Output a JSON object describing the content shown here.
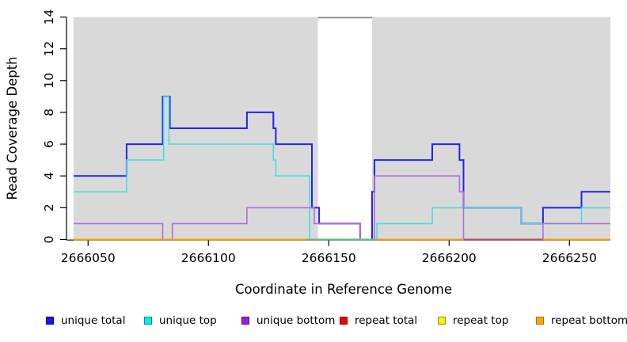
{
  "chart_data": {
    "type": "line",
    "subtype": "step-coverage",
    "title": "",
    "xlabel": "Coordinate in Reference Genome",
    "ylabel": "Read Coverage Depth",
    "xlim": [
      2666044,
      2666267
    ],
    "ylim": [
      0,
      14
    ],
    "x_ticks": [
      2666050,
      2666100,
      2666150,
      2666200,
      2666250
    ],
    "y_ticks": [
      0,
      2,
      4,
      6,
      8,
      10,
      12,
      14
    ],
    "grid": false,
    "plot_background": "#d9d9d9",
    "axis_color": "#000000",
    "masked_region": {
      "start": 2666145.5,
      "end": 2666168,
      "fill": "#ffffff",
      "top_line_color": "#7a7a7a"
    },
    "series": [
      {
        "name": "repeat total",
        "color": "#e00000",
        "width": 1.6,
        "steps": [
          [
            2666044,
            0
          ]
        ]
      },
      {
        "name": "repeat top",
        "color": "#f5f500",
        "width": 1.6,
        "steps": [
          [
            2666044,
            0
          ]
        ]
      },
      {
        "name": "unique total",
        "color": "#2323ee",
        "width": 2,
        "steps": [
          [
            2666044,
            4
          ],
          [
            2666066,
            6
          ],
          [
            2666081,
            9
          ],
          [
            2666084,
            7
          ],
          [
            2666116,
            8
          ],
          [
            2666127,
            7
          ],
          [
            2666128,
            6
          ],
          [
            2666143,
            2
          ],
          [
            2666146,
            1
          ],
          [
            2666163,
            0
          ],
          [
            2666168,
            3
          ],
          [
            2666169,
            5
          ],
          [
            2666193,
            6
          ],
          [
            2666204.3,
            5
          ],
          [
            2666206,
            2
          ],
          [
            2666230,
            1
          ],
          [
            2666239,
            2
          ],
          [
            2666255,
            3
          ]
        ]
      },
      {
        "name": "unique top",
        "color": "#45dede",
        "width": 1.6,
        "steps": [
          [
            2666044,
            3
          ],
          [
            2666066,
            5
          ],
          [
            2666081.4,
            9
          ],
          [
            2666083.6,
            6
          ],
          [
            2666127,
            5
          ],
          [
            2666128,
            4
          ],
          [
            2666142,
            0
          ],
          [
            2666170,
            1
          ],
          [
            2666193,
            2
          ],
          [
            2666230,
            1
          ],
          [
            2666255,
            2
          ]
        ]
      },
      {
        "name": "unique bottom",
        "color": "#ad6fdd",
        "width": 1.6,
        "steps": [
          [
            2666044,
            1
          ],
          [
            2666081,
            0
          ],
          [
            2666085,
            1
          ],
          [
            2666116,
            2
          ],
          [
            2666144,
            1
          ],
          [
            2666163,
            0
          ],
          [
            2666169,
            4
          ],
          [
            2666204.3,
            3
          ],
          [
            2666206,
            0
          ],
          [
            2666239,
            1
          ]
        ]
      },
      {
        "name": "repeat bottom",
        "color": "#ff9d00",
        "width": 2,
        "steps": [
          [
            2666044,
            0
          ]
        ]
      }
    ],
    "zero_line_overlays": [
      {
        "start": 2666141,
        "end": 2666170,
        "color": "#63be7d"
      },
      {
        "start": 2666206,
        "end": 2666239,
        "color": "#c9476b"
      }
    ],
    "legend_position": "bottom"
  },
  "legend": {
    "items": [
      {
        "label": "unique total",
        "fill": "#1414ff",
        "border": "#000099"
      },
      {
        "label": "unique top",
        "fill": "#00f0f0",
        "border": "#008b8b"
      },
      {
        "label": "unique bottom",
        "fill": "#9b1fd6",
        "border": "#5c0a8a"
      },
      {
        "label": "repeat total",
        "fill": "#f50000",
        "border": "#8b0000"
      },
      {
        "label": "repeat top",
        "fill": "#f5f500",
        "border": "#8b8b00"
      },
      {
        "label": "repeat bottom",
        "fill": "#ffa500",
        "border": "#b36b00"
      }
    ]
  }
}
